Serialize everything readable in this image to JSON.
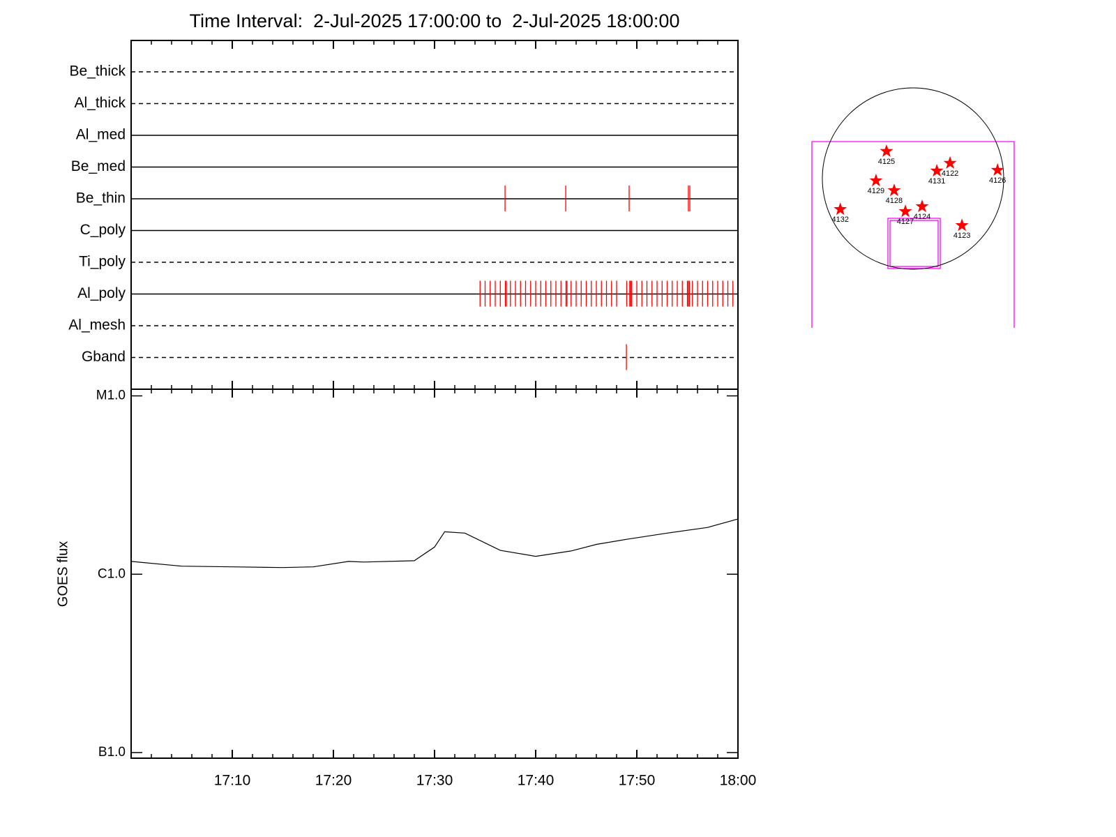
{
  "chart_data": [
    {
      "type": "timeline",
      "title": "Time Interval:  2-Jul-2025 17:00:00 to  2-Jul-2025 18:00:00",
      "xlim": [
        0,
        60
      ],
      "xticks": [
        10,
        20,
        30,
        40,
        50,
        60
      ],
      "xminorticks": [
        2,
        4,
        6,
        8,
        12,
        14,
        16,
        18,
        22,
        24,
        26,
        28,
        32,
        34,
        36,
        38,
        42,
        44,
        46,
        48,
        52,
        54,
        56,
        58
      ],
      "event_color": "#ff0000",
      "series": [
        {
          "name": "Be_thick",
          "line_style": "dashed",
          "events": []
        },
        {
          "name": "Al_thick",
          "line_style": "dashed",
          "events": []
        },
        {
          "name": "Al_med",
          "line_style": "solid",
          "events": []
        },
        {
          "name": "Be_med",
          "line_style": "solid",
          "events": []
        },
        {
          "name": "Be_thin",
          "line_style": "solid",
          "events": [
            36.97,
            42.97,
            49.24,
            55.1,
            55.24
          ]
        },
        {
          "name": "C_poly",
          "line_style": "solid",
          "events": []
        },
        {
          "name": "Ti_poly",
          "line_style": "dashed",
          "events": []
        },
        {
          "name": "Al_poly",
          "line_style": "solid",
          "events": [
            34.5,
            35.0,
            35.5,
            36.0,
            36.5,
            37.0,
            37.1,
            37.5,
            38.0,
            38.5,
            39.0,
            39.5,
            40.0,
            40.5,
            41.0,
            41.5,
            42.0,
            42.5,
            43.0,
            43.1,
            43.5,
            44.0,
            44.5,
            45.0,
            45.5,
            46.0,
            46.5,
            47.0,
            47.5,
            48.0,
            49.0,
            49.3,
            49.4,
            49.5,
            50.0,
            50.5,
            51.0,
            51.5,
            52.0,
            52.5,
            53.0,
            53.5,
            54.0,
            54.5,
            55.0,
            55.1,
            55.2,
            55.5,
            56.0,
            56.5,
            57.0,
            57.5,
            58.0,
            58.5,
            59.0,
            59.5
          ]
        },
        {
          "name": "Al_mesh",
          "line_style": "dashed",
          "events": []
        },
        {
          "name": "Gband",
          "line_style": "dashed",
          "events": [
            48.97
          ]
        }
      ]
    },
    {
      "type": "line",
      "ylabel": "GOES flux",
      "log_scale": true,
      "color": "#000000",
      "xlim": [
        0,
        60
      ],
      "xticks": [
        {
          "value": 10,
          "label": "17:10"
        },
        {
          "value": 20,
          "label": "17:20"
        },
        {
          "value": 30,
          "label": "17:30"
        },
        {
          "value": 40,
          "label": "17:40"
        },
        {
          "value": 50,
          "label": "17:50"
        },
        {
          "value": 60,
          "label": "18:00"
        }
      ],
      "xminorticks": [
        2,
        4,
        6,
        8,
        12,
        14,
        16,
        18,
        22,
        24,
        26,
        28,
        32,
        34,
        36,
        38,
        42,
        44,
        46,
        48,
        52,
        54,
        56,
        58
      ],
      "ylim": [
        9.3e-08,
        1.09e-05
      ],
      "yticks": [
        {
          "value": 1e-07,
          "label": "B1.0"
        },
        {
          "value": 1e-06,
          "label": "C1.0"
        },
        {
          "value": 1e-05,
          "label": "M1.0"
        }
      ],
      "x": [
        0,
        5,
        10,
        15,
        18,
        21.5,
        23,
        28,
        30,
        31,
        33,
        36.5,
        40,
        43.5,
        46,
        49,
        53,
        57,
        60
      ],
      "values": [
        1.18e-06,
        1.11e-06,
        1.1e-06,
        1.09e-06,
        1.1e-06,
        1.18e-06,
        1.17e-06,
        1.19e-06,
        1.42e-06,
        1.73e-06,
        1.7e-06,
        1.36e-06,
        1.26e-06,
        1.35e-06,
        1.47e-06,
        1.57e-06,
        1.7e-06,
        1.83e-06,
        2.04e-06
      ]
    },
    {
      "type": "scatter",
      "color": "#ff0000",
      "xlim": [
        -960,
        960
      ],
      "ylim": [
        -960,
        960
      ],
      "labels": [
        "4125",
        "4122",
        "4131",
        "4126",
        "4129",
        "4128",
        "4124",
        "4127",
        "4132",
        "4123"
      ],
      "x": [
        -281,
        392,
        252,
        895,
        -392,
        -200,
        96,
        -81,
        -770,
        518
      ],
      "values": [
        289,
        163,
        81,
        89,
        -22,
        -126,
        -296,
        -348,
        -326,
        -496
      ]
    }
  ]
}
